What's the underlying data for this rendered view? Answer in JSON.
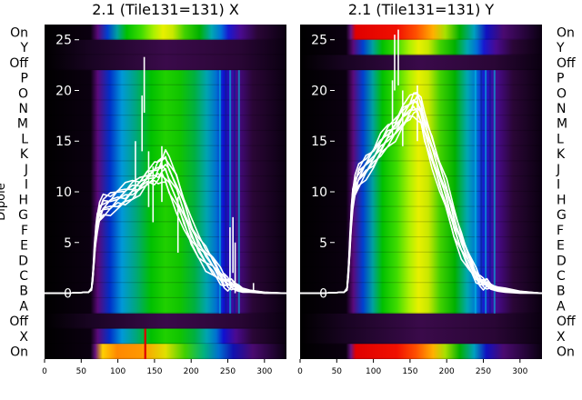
{
  "chart_data": [
    {
      "type": "heatmap",
      "title": "2.1 (Tile131=131) X",
      "ylabel": "Dipole",
      "dipole_rows": [
        "On",
        "Y",
        "Off",
        "P",
        "O",
        "N",
        "M",
        "L",
        "K",
        "J",
        "I",
        "H",
        "G",
        "F",
        "E",
        "D",
        "C",
        "B",
        "A",
        "Off",
        "X",
        "On"
      ],
      "x_ticks": [
        0,
        50,
        100,
        150,
        200,
        250,
        300
      ],
      "xlim": [
        0,
        330
      ],
      "y_ticks": [
        0,
        5,
        10,
        15,
        20,
        25
      ],
      "ylim": [
        -6.5,
        26.5
      ],
      "colormap": "nipy_spectral",
      "series": {
        "x": [
          0,
          30,
          60,
          64,
          66,
          68,
          70,
          72,
          75,
          80,
          90,
          100,
          110,
          120,
          130,
          140,
          150,
          155,
          160,
          165,
          170,
          180,
          190,
          200,
          210,
          220,
          230,
          240,
          245,
          250,
          255,
          260,
          265,
          270,
          280,
          300,
          330
        ],
        "upper": [
          0,
          0,
          0.1,
          0.5,
          2,
          4.5,
          6.5,
          8,
          8.8,
          9.5,
          9.8,
          10.3,
          10.6,
          11,
          11.3,
          12,
          12.6,
          13,
          13.5,
          14,
          13.2,
          11.8,
          9.5,
          7.2,
          5.6,
          4.6,
          3.6,
          2.2,
          1.8,
          1.5,
          1.3,
          1.0,
          0.8,
          0.5,
          0.3,
          0.1,
          0
        ],
        "lower": [
          0,
          0,
          0.1,
          0.3,
          1.5,
          3.5,
          5.2,
          6.2,
          7,
          7.6,
          8,
          8.4,
          8.7,
          9.3,
          10,
          10.7,
          10.8,
          11,
          11.2,
          10.7,
          9.8,
          8.2,
          6.4,
          4.7,
          3.5,
          2.5,
          1.7,
          1.0,
          0.7,
          0.5,
          0.4,
          0.3,
          0.2,
          0.1,
          0.1,
          0,
          0
        ],
        "line_count": 9
      },
      "spikes": [
        {
          "x": 124,
          "y": 15
        },
        {
          "x": 133,
          "y": 19.5
        },
        {
          "x": 136,
          "y": 23.3
        },
        {
          "x": 142,
          "y": 14
        },
        {
          "x": 148,
          "y": 12.5
        },
        {
          "x": 160,
          "y": 14.5
        },
        {
          "x": 182,
          "y": 9.5
        },
        {
          "x": 253,
          "y": 6.5
        },
        {
          "x": 257,
          "y": 7.5
        },
        {
          "x": 260,
          "y": 5
        },
        {
          "x": 285,
          "y": 1
        }
      ]
    },
    {
      "type": "heatmap",
      "title": "2.1 (Tile131=131) Y",
      "ylabel": "",
      "dipole_rows": [
        "On",
        "Y",
        "Off",
        "P",
        "O",
        "N",
        "M",
        "L",
        "K",
        "J",
        "I",
        "H",
        "G",
        "F",
        "E",
        "D",
        "C",
        "B",
        "A",
        "Off",
        "X",
        "On"
      ],
      "x_ticks": [
        0,
        50,
        100,
        150,
        200,
        250,
        300
      ],
      "xlim": [
        0,
        330
      ],
      "y_ticks": [
        0,
        5,
        10,
        15,
        20,
        25
      ],
      "ylim": [
        -6.5,
        26.5
      ],
      "colormap": "nipy_spectral",
      "series": {
        "x": [
          0,
          30,
          60,
          64,
          66,
          68,
          70,
          72,
          75,
          80,
          90,
          100,
          110,
          120,
          130,
          140,
          150,
          155,
          160,
          165,
          170,
          180,
          190,
          200,
          210,
          220,
          230,
          240,
          245,
          250,
          255,
          260,
          265,
          270,
          280,
          300,
          330
        ],
        "upper": [
          0,
          0,
          0.1,
          0.5,
          2.5,
          5.5,
          8.5,
          10.5,
          11.5,
          12.5,
          13.5,
          14.3,
          15.5,
          16.5,
          17.2,
          18.5,
          19.2,
          19.7,
          20,
          19.2,
          17.5,
          15.5,
          13.2,
          11,
          8.2,
          6,
          4,
          2.2,
          1.6,
          1.4,
          1.3,
          0.9,
          0.7,
          0.6,
          0.5,
          0.2,
          0
        ],
        "lower": [
          0,
          0,
          0.1,
          0.3,
          1.8,
          4.2,
          6.8,
          8.5,
          9.5,
          10.5,
          11.5,
          12.4,
          13.5,
          14.5,
          15.3,
          16.3,
          17.2,
          17.6,
          17.3,
          16.5,
          15,
          12.6,
          10.2,
          8,
          5.5,
          3.7,
          2.3,
          1.2,
          0.9,
          0.6,
          0.5,
          0.4,
          0.3,
          0.2,
          0.1,
          0,
          0
        ],
        "line_count": 9
      },
      "spikes": [
        {
          "x": 126,
          "y": 21
        },
        {
          "x": 129,
          "y": 25.5
        },
        {
          "x": 134,
          "y": 26
        },
        {
          "x": 140,
          "y": 20
        },
        {
          "x": 160,
          "y": 20.5
        }
      ]
    }
  ]
}
